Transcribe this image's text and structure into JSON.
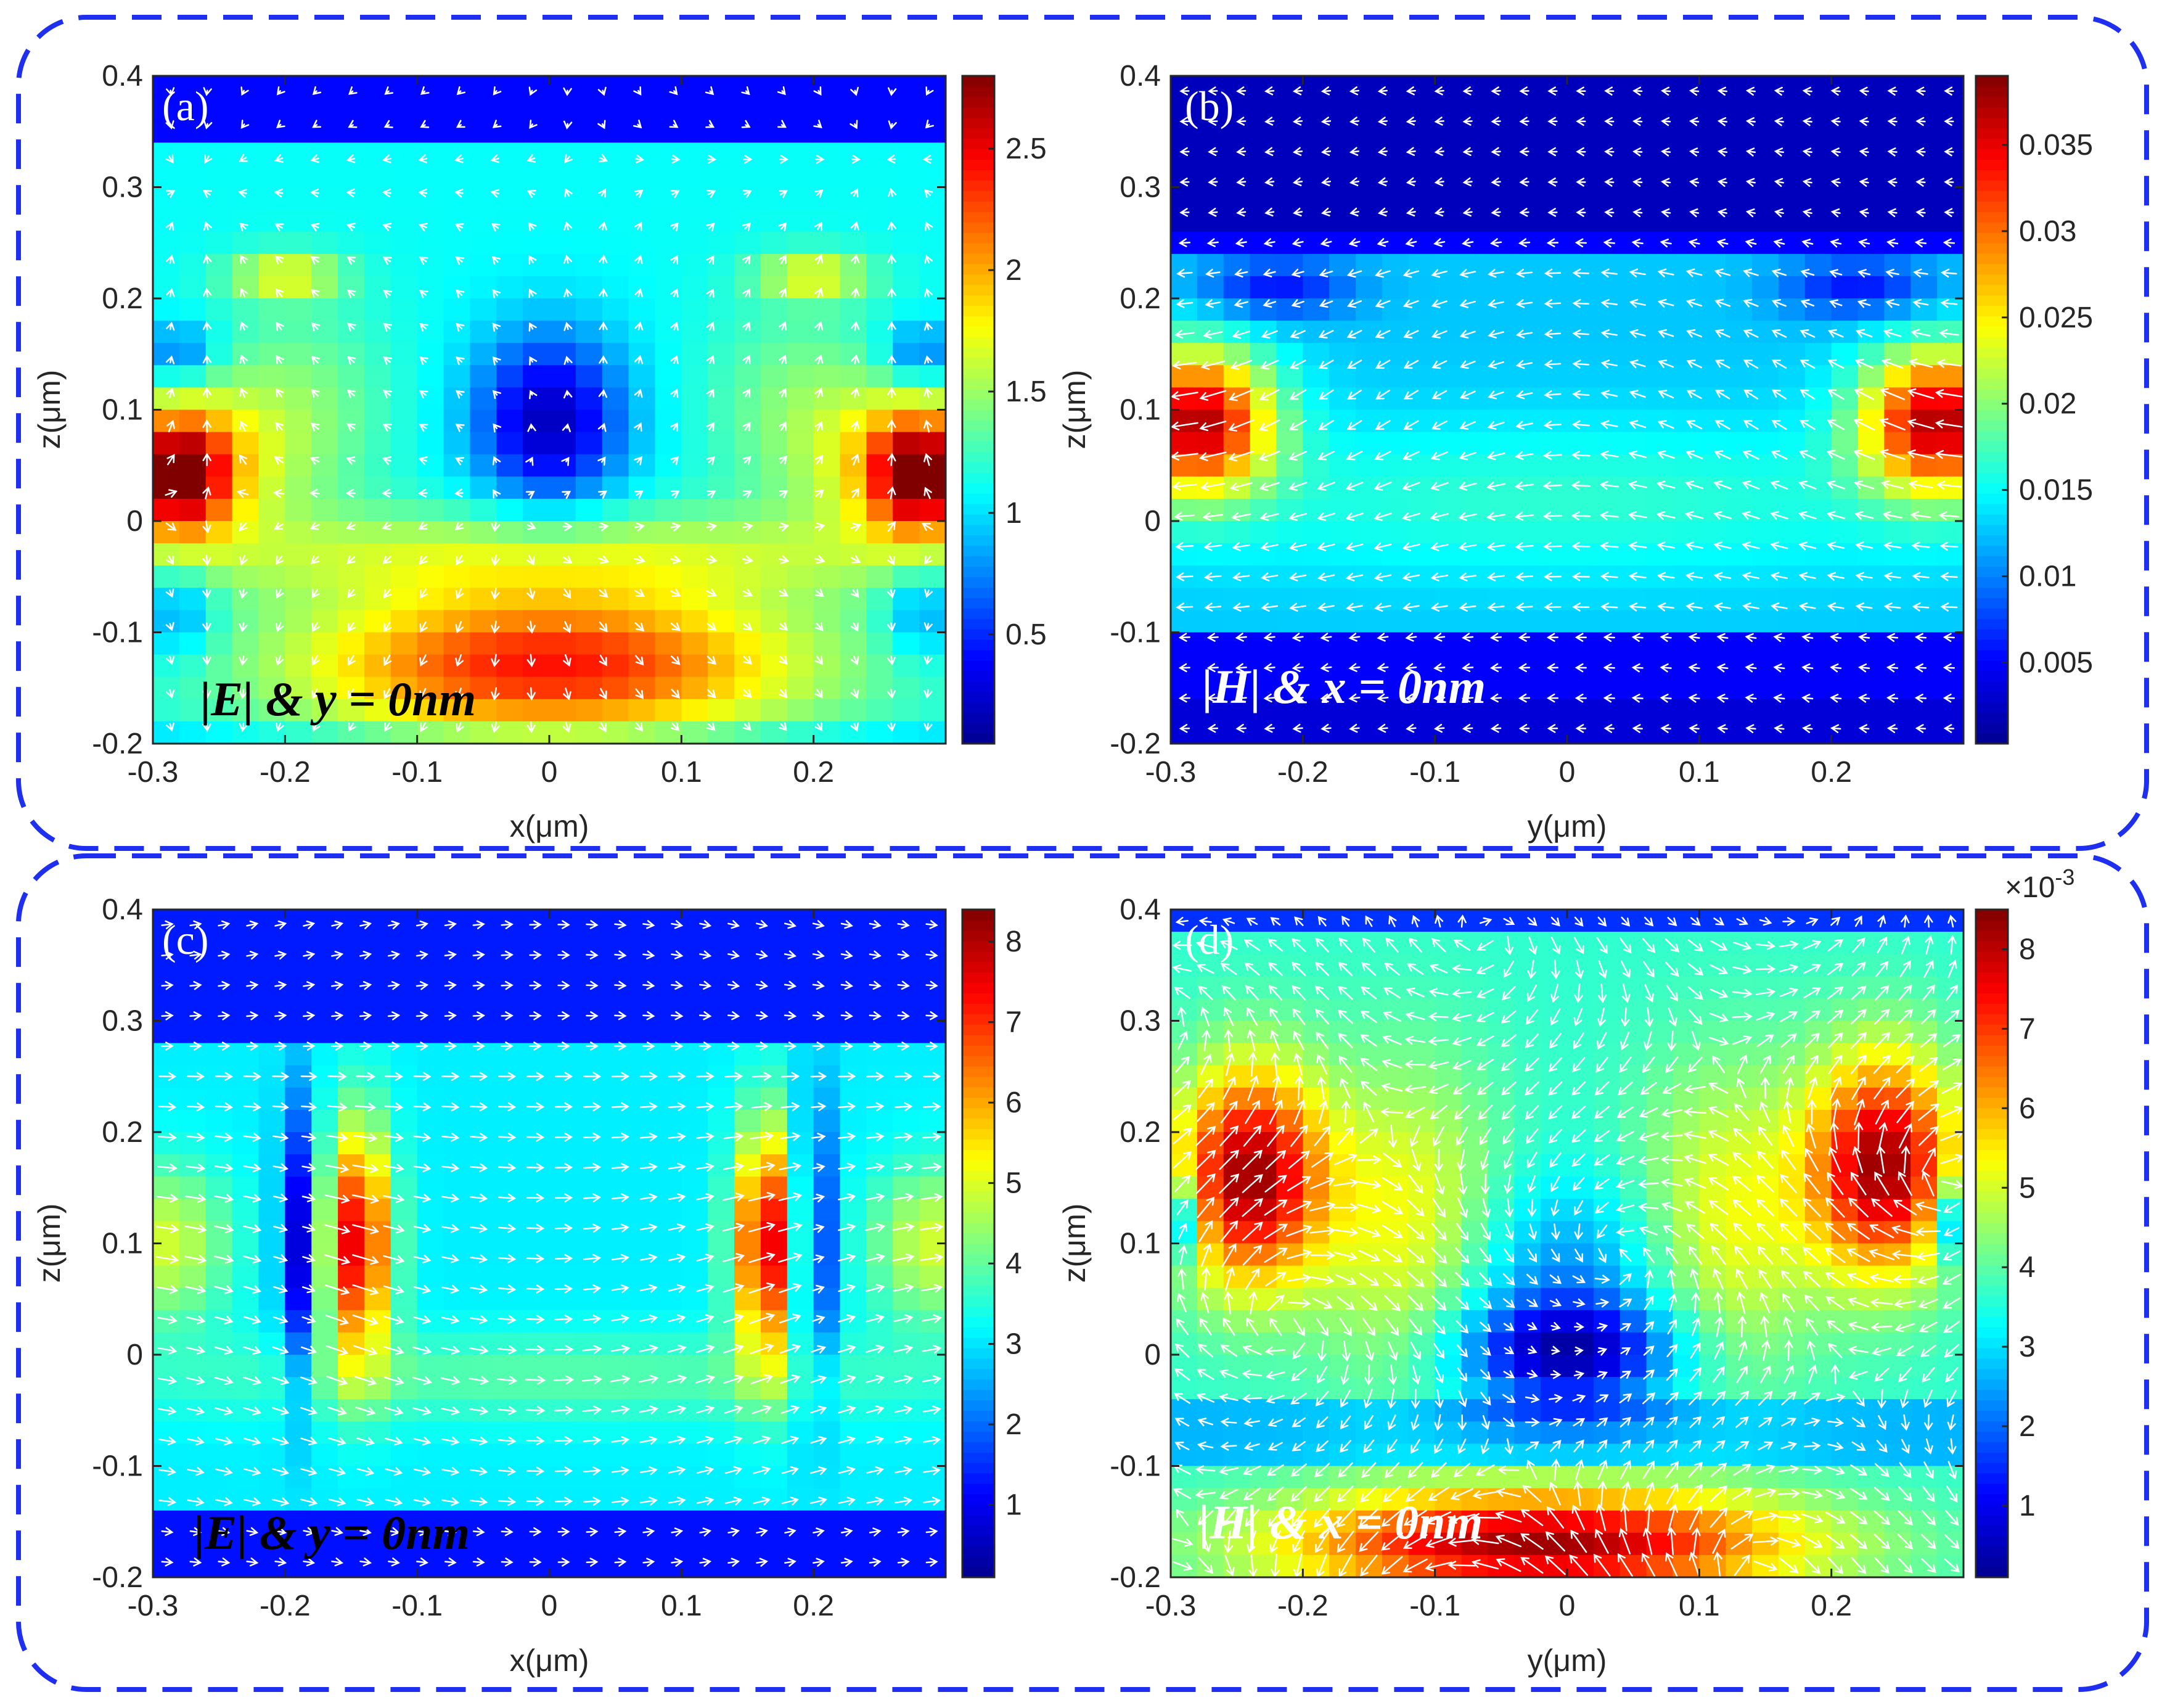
{
  "figure": {
    "colormap": [
      "#00008f",
      "#0000ff",
      "#0080ff",
      "#00ffff",
      "#80ff80",
      "#ffff00",
      "#ff8000",
      "#ff0000",
      "#800000"
    ],
    "arrow_color": "#ffffff",
    "frame_color": "#1f2ff0"
  },
  "chart_data": [
    {
      "id": "a",
      "type": "heatmap",
      "panel_label": "(a)",
      "annotation": "|E| & y = 0nm",
      "annotation_color": "#000000",
      "xlabel": "x(μm)",
      "ylabel": "z(μm)",
      "xlim": [
        -0.3,
        0.3
      ],
      "ylim": [
        -0.2,
        0.4
      ],
      "xticks": [
        -0.3,
        -0.2,
        -0.1,
        0,
        0.1,
        0.2
      ],
      "xtick_labels": [
        "-0.3",
        "-0.2",
        "-0.1",
        "0",
        "0.1",
        "0.2"
      ],
      "yticks": [
        -0.2,
        -0.1,
        0,
        0.1,
        0.2,
        0.3,
        0.4
      ],
      "ytick_labels": [
        "-0.2",
        "-0.1",
        "0",
        "0.1",
        "0.2",
        "0.3",
        "0.4"
      ],
      "clim": [
        0.05,
        2.8
      ],
      "cticks": [
        0.5,
        1,
        1.5,
        2,
        2.5
      ],
      "ctick_labels": [
        "0.5",
        "1",
        "1.5",
        "2",
        "2.5"
      ],
      "cexp": "",
      "field": "E",
      "field_peak": 2.8,
      "arrow_density": "moderate"
    },
    {
      "id": "b",
      "type": "heatmap",
      "panel_label": "(b)",
      "annotation": "|H| & x = 0nm",
      "annotation_color": "#ffffff",
      "xlabel": "y(μm)",
      "ylabel": "z(μm)",
      "xlim": [
        -0.3,
        0.3
      ],
      "ylim": [
        -0.2,
        0.4
      ],
      "xticks": [
        -0.3,
        -0.2,
        -0.1,
        0,
        0.1,
        0.2
      ],
      "xtick_labels": [
        "-0.3",
        "-0.2",
        "-0.1",
        "0",
        "0.1",
        "0.2"
      ],
      "yticks": [
        -0.2,
        -0.1,
        0,
        0.1,
        0.2,
        0.3,
        0.4
      ],
      "ytick_labels": [
        "-0.2",
        "-0.1",
        "0",
        "0.1",
        "0.2",
        "0.3",
        "0.4"
      ],
      "clim": [
        0.0003,
        0.039
      ],
      "cticks": [
        0.005,
        0.01,
        0.015,
        0.02,
        0.025,
        0.03,
        0.035
      ],
      "ctick_labels": [
        "0.005",
        "0.01",
        "0.015",
        "0.02",
        "0.025",
        "0.03",
        "0.035"
      ],
      "cexp": "",
      "field": "H1",
      "field_peak": 0.039,
      "arrow_density": "dense"
    },
    {
      "id": "c",
      "type": "heatmap",
      "panel_label": "(c)",
      "annotation": "|E| & y = 0nm",
      "annotation_color": "#000000",
      "xlabel": "x(μm)",
      "ylabel": "z(μm)",
      "xlim": [
        -0.3,
        0.3
      ],
      "ylim": [
        -0.2,
        0.4
      ],
      "xticks": [
        -0.3,
        -0.2,
        -0.1,
        0,
        0.1,
        0.2
      ],
      "xtick_labels": [
        "-0.3",
        "-0.2",
        "-0.1",
        "0",
        "0.1",
        "0.2"
      ],
      "yticks": [
        -0.2,
        -0.1,
        0,
        0.1,
        0.2,
        0.3,
        0.4
      ],
      "ytick_labels": [
        "-0.2",
        "-0.1",
        "0",
        "0.1",
        "0.2",
        "0.3",
        "0.4"
      ],
      "clim": [
        0.1,
        8.4
      ],
      "cticks": [
        1,
        2,
        3,
        4,
        5,
        6,
        7,
        8
      ],
      "ctick_labels": [
        "1",
        "2",
        "3",
        "4",
        "5",
        "6",
        "7",
        "8"
      ],
      "cexp": "",
      "field": "E2",
      "field_peak": 8.4,
      "arrow_density": "dense"
    },
    {
      "id": "d",
      "type": "heatmap",
      "panel_label": "(d)",
      "annotation": "|H| & x = 0nm",
      "annotation_color": "#ffffff",
      "xlabel": "y(μm)",
      "ylabel": "z(μm)",
      "xlim": [
        -0.3,
        0.3
      ],
      "ylim": [
        -0.2,
        0.4
      ],
      "xticks": [
        -0.3,
        -0.2,
        -0.1,
        0,
        0.1,
        0.2
      ],
      "xtick_labels": [
        "-0.3",
        "-0.2",
        "-0.1",
        "0",
        "0.1",
        "0.2"
      ],
      "yticks": [
        -0.2,
        -0.1,
        0,
        0.1,
        0.2,
        0.3,
        0.4
      ],
      "ytick_labels": [
        "-0.2",
        "-0.1",
        "0",
        "0.1",
        "0.2",
        "0.3",
        "0.4"
      ],
      "clim": [
        0.0001,
        0.0085
      ],
      "cticks": [
        0.001,
        0.002,
        0.003,
        0.004,
        0.005,
        0.006,
        0.007,
        0.008
      ],
      "ctick_labels": [
        "1",
        "2",
        "3",
        "4",
        "5",
        "6",
        "7",
        "8"
      ],
      "cexp": "×10",
      "cexp_power": "-3",
      "field": "H2",
      "field_peak": 0.0085,
      "arrow_density": "very dense"
    }
  ]
}
